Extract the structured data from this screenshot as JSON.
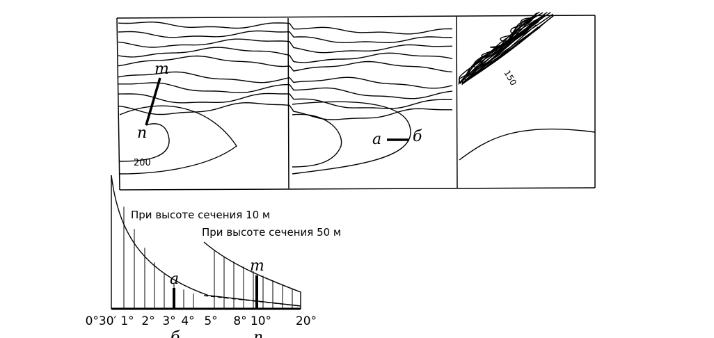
{
  "map": {
    "labels": {
      "m": "m",
      "n": "n",
      "h200": "200",
      "a": "а",
      "b": "б",
      "h150": "150"
    }
  },
  "scale": {
    "caption10": "При высоте сечения 10 м",
    "caption50": "При высоте сечения 50 м",
    "mark_a": "а",
    "mark_m": "m",
    "ticks": [
      "0°30′",
      "1°",
      "2°",
      "3°",
      "4°",
      "5°",
      "8°",
      "10°",
      "20°"
    ],
    "under_b": "б",
    "under_n": "n"
  }
}
